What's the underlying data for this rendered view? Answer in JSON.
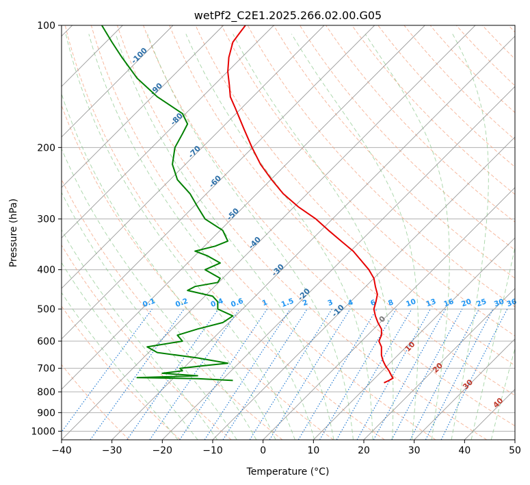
{
  "chart_data": {
    "type": "line",
    "title": "wetPf2_C2E1.2025.266.02.00.G05",
    "xlabel": "Temperature (°C)",
    "ylabel": "Pressure (hPa)",
    "xlim": [
      -40,
      50
    ],
    "ylim": [
      1050,
      100
    ],
    "yscale": "log",
    "xticks": [
      -40,
      -30,
      -20,
      -10,
      0,
      10,
      20,
      30,
      40,
      50
    ],
    "yticks": [
      100,
      200,
      300,
      400,
      500,
      600,
      700,
      800,
      900,
      1000
    ],
    "grid": true,
    "colors": {
      "temperature": "#e60000",
      "dewpoint": "#008000",
      "isotherms": "#999999",
      "dry_adiabats": "#f4a582",
      "moist_adiabats": "#8fc98f",
      "mixing_ratio": "#1f78d1",
      "mixing_label": "#2196f3",
      "temp_label": "#2c6fa8",
      "moist_label": "#c0392b"
    },
    "series": [
      {
        "key": "temperature",
        "pressure": [
          760,
          750,
          740,
          730,
          710,
          690,
          670,
          650,
          620,
          600,
          580,
          560,
          540,
          520,
          500,
          480,
          460,
          440,
          420,
          400,
          380,
          360,
          340,
          320,
          300,
          280,
          260,
          240,
          220,
          200,
          180,
          160,
          150,
          140,
          130,
          120,
          110,
          105,
          100
        ],
        "temp": [
          24,
          25,
          25.8,
          25.5,
          25,
          24.3,
          23.8,
          23.5,
          23.5,
          23,
          23.5,
          23.5,
          22.8,
          22.3,
          22,
          22.4,
          22.7,
          22.3,
          22,
          21,
          19.5,
          17.9,
          15.5,
          13,
          10.5,
          7,
          4,
          1.7,
          -0.5,
          -2.2,
          -3.8,
          -5.5,
          -6.5,
          -6.7,
          -7,
          -6.8,
          -6,
          -4.8,
          -3.5
        ]
      },
      {
        "key": "dewpoint",
        "pressure": [
          750,
          742,
          738,
          730,
          720,
          710,
          700,
          690,
          680,
          670,
          660,
          640,
          620,
          600,
          580,
          560,
          540,
          520,
          500,
          480,
          465,
          450,
          440,
          430,
          420,
          400,
          385,
          370,
          360,
          350,
          340,
          320,
          300,
          280,
          260,
          240,
          220,
          200,
          185,
          175,
          165,
          150,
          135,
          120,
          110,
          100
        ],
        "temp": [
          -6,
          -13,
          -25,
          -13,
          -20,
          -16,
          -16.5,
          -12,
          -7,
          -10,
          -13,
          -21,
          -23,
          -16,
          -17,
          -13,
          -8,
          -6,
          -9,
          -9,
          -10,
          -15,
          -13.5,
          -9,
          -8.5,
          -11.5,
          -8.5,
          -11,
          -13.5,
          -9.5,
          -7,
          -8,
          -11.5,
          -13,
          -14.5,
          -17,
          -18,
          -17.5,
          -16,
          -15,
          -16,
          -21,
          -25,
          -28,
          -30,
          -32
        ]
      }
    ],
    "temp_labels": [
      "-100",
      "-90",
      "-80",
      "-70",
      "-60",
      "-50",
      "-40",
      "-30",
      "-20",
      "-10"
    ],
    "temp_label_values": [
      -100,
      -90,
      -80,
      -70,
      -60,
      -50,
      -40,
      -30,
      -20,
      -10
    ],
    "temp_label_pressures": [
      120,
      145,
      172,
      207,
      245,
      295,
      347,
      405,
      465,
      510
    ],
    "mixing_ratio_labels": [
      "0.1",
      "0.2",
      "0.4",
      "0.6",
      "1",
      "1.5",
      "2",
      "3",
      "4",
      "6",
      "8",
      "10",
      "13",
      "16",
      "20",
      "25",
      "30",
      "36"
    ],
    "mixing_ratio_values": [
      0.1,
      0.2,
      0.4,
      0.6,
      1,
      1.5,
      2,
      3,
      4,
      6,
      8,
      10,
      13,
      16,
      20,
      25,
      30,
      36
    ],
    "mixing_ratio_label_temps": [
      -22.5,
      -16,
      -9,
      -5,
      0.5,
      5,
      8.5,
      13.5,
      17.5,
      22,
      25.5,
      29.5,
      33.5,
      37,
      40.5,
      43.5,
      47,
      49.5
    ],
    "moist_labels": [
      "0",
      "10",
      "20",
      "30",
      "40"
    ],
    "moist_label_temps": [
      24,
      29.5,
      35,
      41,
      47
    ],
    "moist_label_pressures": [
      535,
      625,
      705,
      775,
      860
    ]
  }
}
